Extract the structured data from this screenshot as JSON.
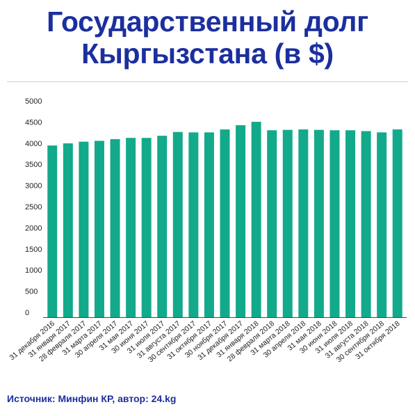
{
  "header": {
    "title_line1": "Государственный долг",
    "title_line2": "Кыргызстана (в $)"
  },
  "footer": {
    "source": "Источник: Минфин КР, автор: 24.kg"
  },
  "chart_data": {
    "type": "bar",
    "title": "Государственный долг Кыргызстана (в $)",
    "categories": [
      "31 декабря 2016",
      "31 января 2017",
      "28 февраля 2017",
      "31 марта 2017",
      "30 апреля 2017",
      "31 мая 2017",
      "30 июня 2017",
      "31 июля 2017",
      "31 августа 2017",
      "30 сентября 2017",
      "31 октября 2017",
      "30 ноября 2017",
      "31 декабря 2017",
      "31 января 2018",
      "28 февраля 2018",
      "31 марта 2018",
      "30 апреля 2018",
      "31 мая 2018",
      "30 июня 2018",
      "31 июля 2018",
      "31 августа 2018",
      "30 сентября 2018",
      "31 октября 2018"
    ],
    "values": [
      4060,
      4110,
      4150,
      4170,
      4210,
      4240,
      4240,
      4290,
      4380,
      4370,
      4370,
      4440,
      4540,
      4620,
      4420,
      4430,
      4440,
      4430,
      4420,
      4420,
      4400,
      4370,
      4440
    ],
    "yticks": [
      0,
      500,
      1000,
      1500,
      2000,
      2500,
      3000,
      3500,
      4000,
      4500,
      5000
    ],
    "ylim": [
      0,
      5000
    ],
    "grid": false,
    "colors": {
      "bar": "#12aa8a",
      "axis": "#444444"
    }
  }
}
